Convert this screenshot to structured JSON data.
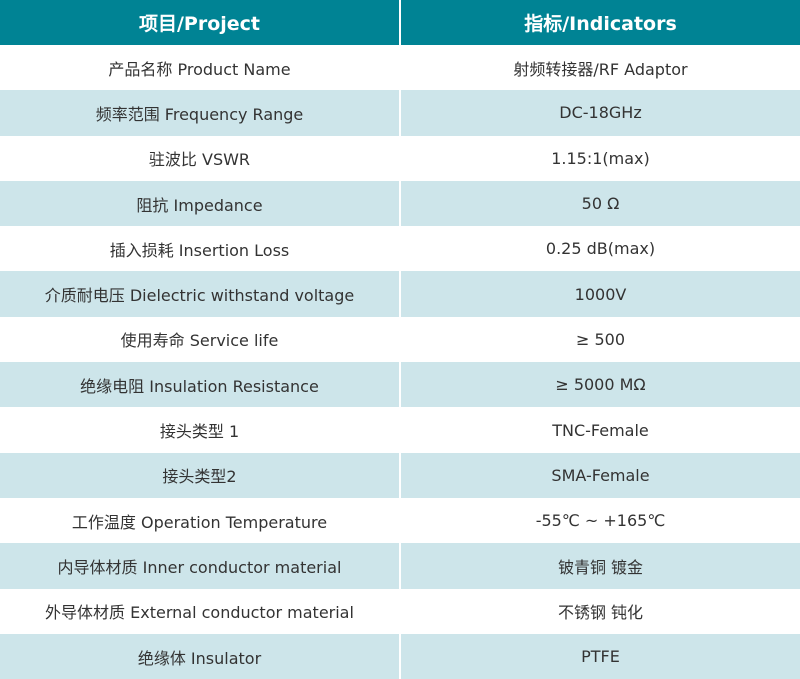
{
  "colors": {
    "header": "#008394",
    "alt_row": "#cde5ea"
  },
  "header": {
    "project": "项目/Project",
    "indicators": "指标/Indicators"
  },
  "rows": [
    {
      "project": "产品名称 Product Name",
      "value": "射频转接器/RF Adaptor"
    },
    {
      "project": "频率范围 Frequency Range",
      "value": "DC-18GHz"
    },
    {
      "project": "驻波比 VSWR",
      "value": "1.15:1(max)"
    },
    {
      "project": "阻抗 Impedance",
      "value": "50 Ω"
    },
    {
      "project": "插入损耗 Insertion Loss",
      "value": "0.25 dB(max)"
    },
    {
      "project": "介质耐电压 Dielectric withstand voltage",
      "value": "1000V"
    },
    {
      "project": "使用寿命 Service life",
      "value": "≥ 500"
    },
    {
      "project": "绝缘电阻 Insulation Resistance",
      "value": "≥ 5000 MΩ"
    },
    {
      "project": "接头类型 1",
      "value": "TNC-Female"
    },
    {
      "project": "接头类型2",
      "value": "SMA-Female"
    },
    {
      "project": "工作温度 Operation Temperature",
      "value": "-55℃ ~ +165℃"
    },
    {
      "project": "内导体材质 Inner conductor material",
      "value": "铍青铜 镀金"
    },
    {
      "project": "外导体材质 External conductor material",
      "value": "不锈钢 钝化"
    },
    {
      "project": "绝缘体 Insulator",
      "value": "PTFE"
    }
  ]
}
